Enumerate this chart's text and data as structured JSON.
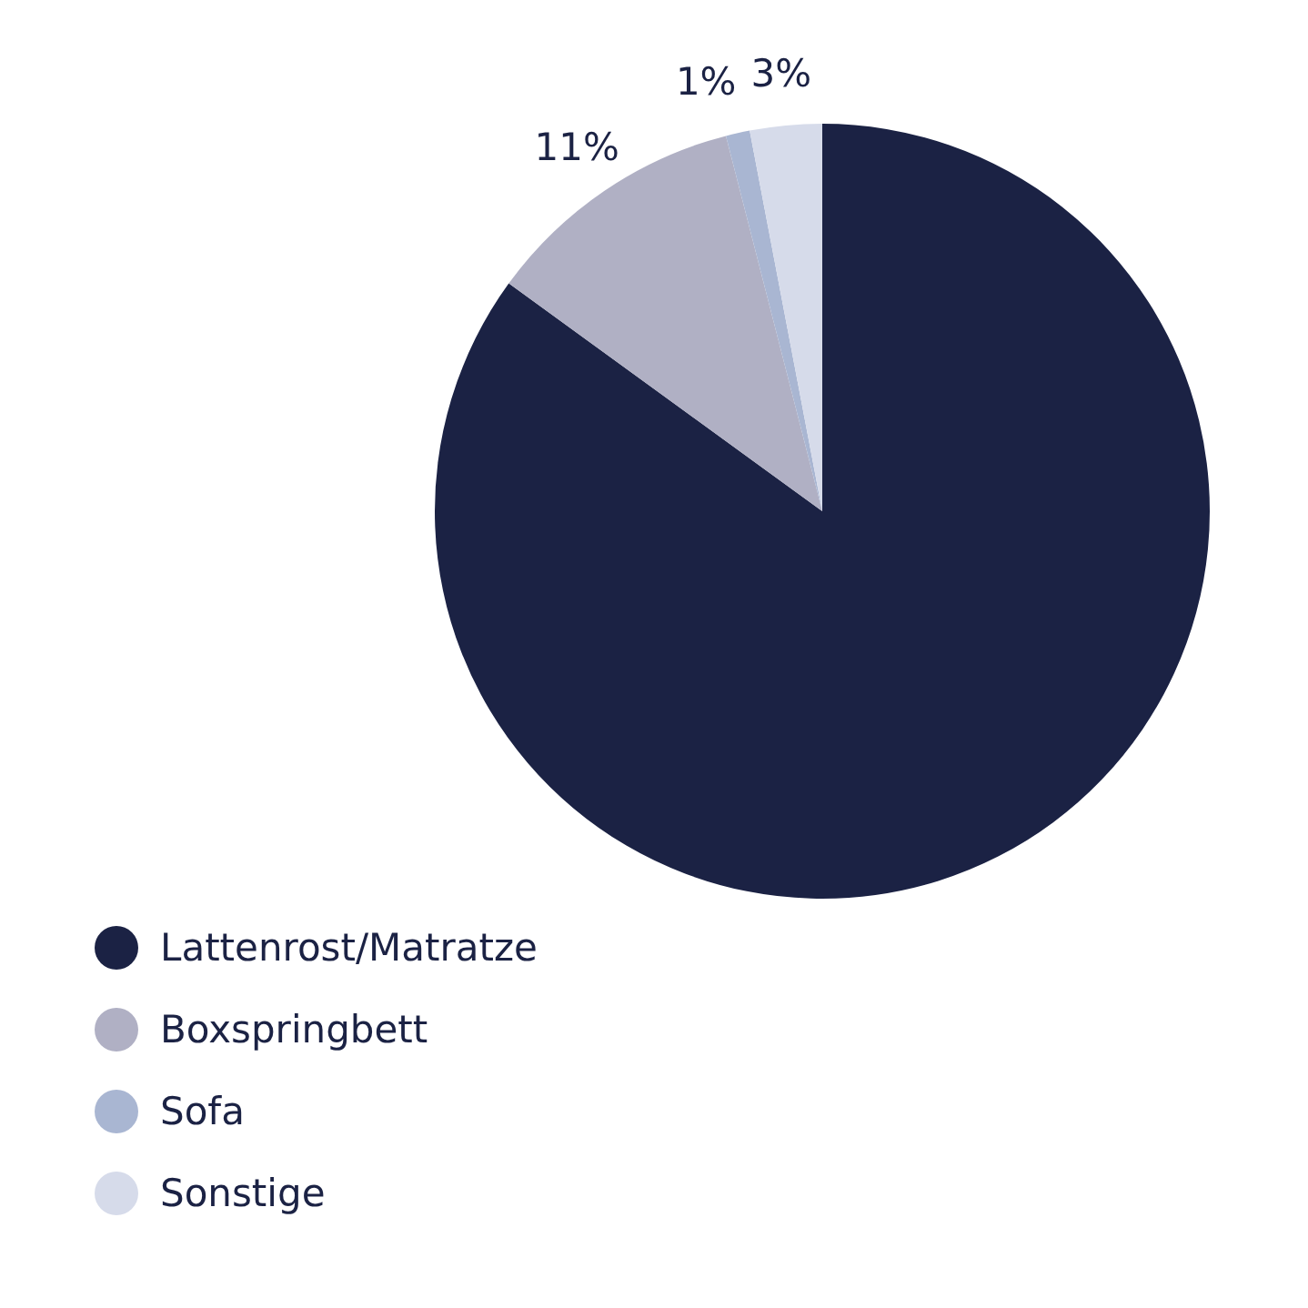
{
  "chart_data": {
    "type": "pie",
    "categories": [
      "Lattenrost/Matratze",
      "Boxspringbett",
      "Sofa",
      "Sonstige"
    ],
    "values": [
      85,
      11,
      1,
      3
    ],
    "colors": [
      "#1b2244",
      "#b0b0c4",
      "#a9b6d2",
      "#d6dbea"
    ],
    "value_labels": [
      null,
      "11%",
      "1%",
      "3%"
    ],
    "legend": "bottom left"
  }
}
